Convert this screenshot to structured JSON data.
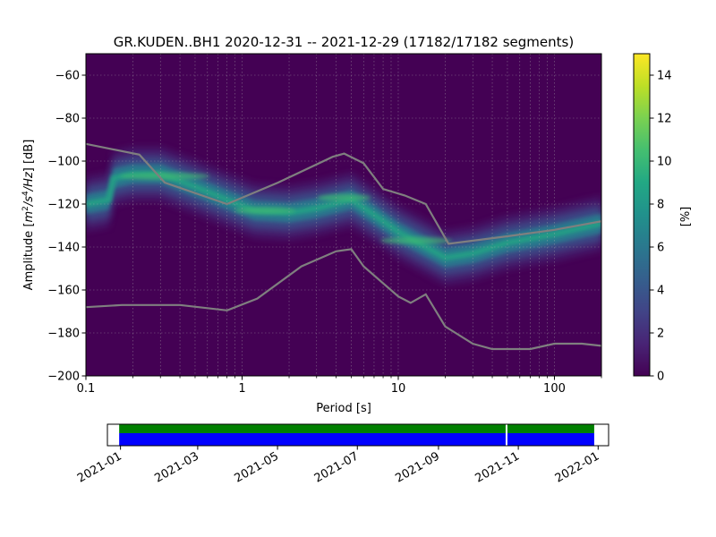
{
  "chart_data": [
    {
      "type": "heatmap",
      "title": "GR.KUDEN..BH1   2020-12-31 -- 2021-12-29  (17182/17182 segments)",
      "xlabel": "Period [s]",
      "ylabel": "Amplitude [m²/s⁴/Hz] [dB]",
      "x_scale": "log",
      "xlim": [
        0.1,
        200
      ],
      "ylim": [
        -200,
        -50
      ],
      "x_ticks": [
        0.1,
        1,
        10,
        100
      ],
      "x_tick_labels": [
        "0.1",
        "1",
        "10",
        "100"
      ],
      "y_ticks": [
        -200,
        -180,
        -160,
        -140,
        -120,
        -100,
        -80,
        -60
      ],
      "y_tick_labels": [
        "−200",
        "−180",
        "−160",
        "−140",
        "−120",
        "−100",
        "−80",
        "−60"
      ],
      "grid": true,
      "colormap": "viridis",
      "colorbar": {
        "label": "[%]",
        "range": [
          0,
          15
        ],
        "ticks": [
          0,
          2,
          4,
          6,
          8,
          10,
          12,
          14
        ],
        "tick_labels": [
          "0",
          "2",
          "4",
          "6",
          "8",
          "10",
          "12",
          "14"
        ]
      },
      "density_mode": [
        {
          "x": 0.1,
          "y": -120
        },
        {
          "x": 0.14,
          "y": -118
        },
        {
          "x": 0.15,
          "y": -108
        },
        {
          "x": 0.2,
          "y": -106
        },
        {
          "x": 0.3,
          "y": -106
        },
        {
          "x": 0.5,
          "y": -112
        },
        {
          "x": 0.8,
          "y": -118
        },
        {
          "x": 1.2,
          "y": -123
        },
        {
          "x": 2,
          "y": -124
        },
        {
          "x": 3,
          "y": -122
        },
        {
          "x": 5,
          "y": -118
        },
        {
          "x": 7,
          "y": -125
        },
        {
          "x": 10,
          "y": -133
        },
        {
          "x": 15,
          "y": -140
        },
        {
          "x": 20,
          "y": -145
        },
        {
          "x": 30,
          "y": -143
        },
        {
          "x": 50,
          "y": -138
        },
        {
          "x": 100,
          "y": -134
        },
        {
          "x": 200,
          "y": -129
        }
      ],
      "series": [
        {
          "values": [
            {
              "x": 0.1,
              "y": -92
            },
            {
              "x": 0.22,
              "y": -97
            },
            {
              "x": 0.32,
              "y": -110
            },
            {
              "x": 0.8,
              "y": -120
            },
            {
              "x": 1.7,
              "y": -110
            },
            {
              "x": 3.8,
              "y": -98
            },
            {
              "x": 4.5,
              "y": -96.5
            },
            {
              "x": 6,
              "y": -101
            },
            {
              "x": 8,
              "y": -113
            },
            {
              "x": 11,
              "y": -116
            },
            {
              "x": 15,
              "y": -120
            },
            {
              "x": 21,
              "y": -138.5
            },
            {
              "x": 50,
              "y": -135
            },
            {
              "x": 100,
              "y": -132
            },
            {
              "x": 200,
              "y": -128
            }
          ],
          "color": "#7f7f7f"
        },
        {
          "values": [
            {
              "x": 0.1,
              "y": -168
            },
            {
              "x": 0.17,
              "y": -167
            },
            {
              "x": 0.4,
              "y": -167
            },
            {
              "x": 0.8,
              "y": -169.5
            },
            {
              "x": 1.25,
              "y": -164
            },
            {
              "x": 2.4,
              "y": -149
            },
            {
              "x": 4,
              "y": -142
            },
            {
              "x": 5,
              "y": -141
            },
            {
              "x": 6,
              "y": -149
            },
            {
              "x": 10,
              "y": -163
            },
            {
              "x": 12,
              "y": -166
            },
            {
              "x": 15,
              "y": -162
            },
            {
              "x": 20,
              "y": -177
            },
            {
              "x": 30,
              "y": -185
            },
            {
              "x": 40,
              "y": -187.5
            },
            {
              "x": 70,
              "y": -187.5
            },
            {
              "x": 100,
              "y": -185
            },
            {
              "x": 150,
              "y": -185
            },
            {
              "x": 200,
              "y": -186
            }
          ],
          "color": "#7f7f7f"
        }
      ]
    },
    {
      "type": "timeline",
      "x_ticks": [
        "2021-01",
        "2021-03",
        "2021-05",
        "2021-07",
        "2021-09",
        "2021-11",
        "2022-01"
      ],
      "xlim": [
        "2020-12-22",
        "2022-01-09"
      ],
      "coverage": {
        "start": "2020-12-31",
        "end": "2021-12-29",
        "gaps": [
          "2021-10-23"
        ],
        "colors": {
          "data": "#0000ff",
          "psd": "#008000"
        }
      }
    }
  ]
}
